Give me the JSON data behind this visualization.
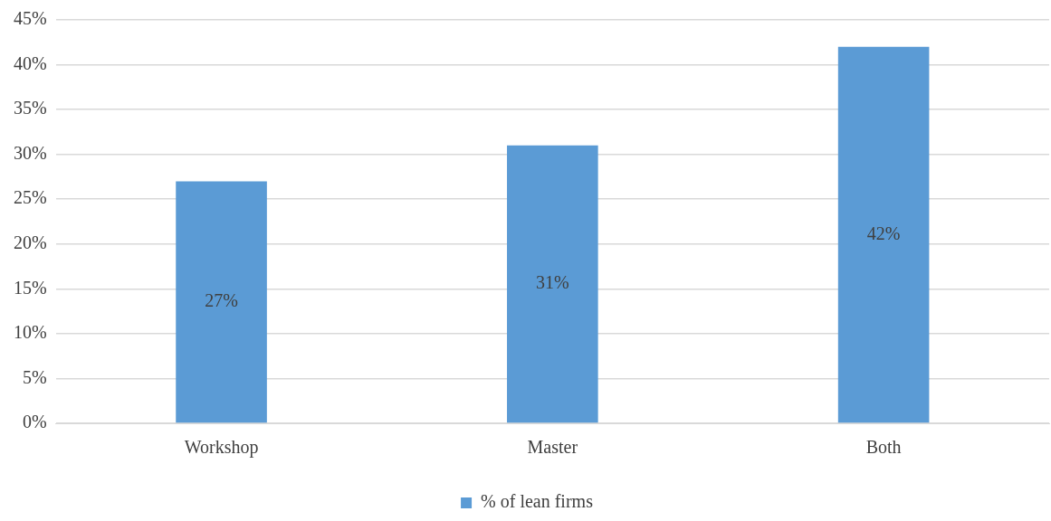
{
  "chart_data": {
    "type": "bar",
    "categories": [
      "Workshop",
      "Master",
      "Both"
    ],
    "series": [
      {
        "name": "% of lean firms",
        "color": "#5b9bd5",
        "values": [
          27,
          31,
          42
        ],
        "value_labels": [
          "27%",
          "31%",
          "42%"
        ]
      }
    ],
    "ylim": [
      0,
      45
    ],
    "yticks": [
      {
        "value": 0,
        "label": "0%"
      },
      {
        "value": 5,
        "label": "5%"
      },
      {
        "value": 10,
        "label": "10%"
      },
      {
        "value": 15,
        "label": "15%"
      },
      {
        "value": 20,
        "label": "20%"
      },
      {
        "value": 25,
        "label": "25%"
      },
      {
        "value": 30,
        "label": "30%"
      },
      {
        "value": 35,
        "label": "35%"
      },
      {
        "value": 40,
        "label": "40%"
      },
      {
        "value": 45,
        "label": "45%"
      }
    ],
    "grid": "y",
    "legend": "bottom"
  }
}
